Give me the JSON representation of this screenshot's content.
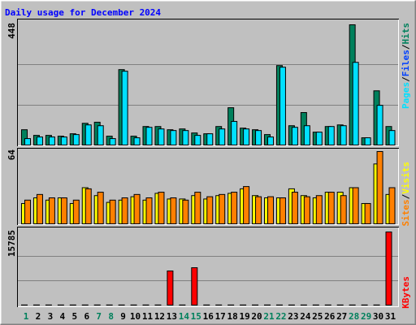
{
  "title": "Daily usage for December 2024",
  "categories": [
    "1",
    "2",
    "3",
    "4",
    "5",
    "6",
    "7",
    "8",
    "9",
    "10",
    "11",
    "12",
    "13",
    "14",
    "15",
    "16",
    "17",
    "18",
    "19",
    "20",
    "21",
    "22",
    "23",
    "24",
    "25",
    "26",
    "27",
    "28",
    "29",
    "30",
    "31"
  ],
  "weekend_days": [
    0,
    6,
    7,
    13,
    14,
    20,
    21,
    27,
    28
  ],
  "label_color": "#000000",
  "weekend_color": "#00805c",
  "chart_data": [
    {
      "type": "bar",
      "ylim": [
        0,
        448
      ],
      "grid": [
        149,
        299
      ],
      "separator": "/",
      "legend": [
        {
          "name": "Pages",
          "color": "#00e0ff"
        },
        {
          "name": "Files",
          "color": "#0040ff"
        },
        {
          "name": "Hits",
          "color": "#00805c"
        }
      ],
      "series": [
        {
          "legend": 2,
          "values": [
            57,
            36,
            36,
            33,
            42,
            81,
            85,
            33,
            281,
            33,
            69,
            69,
            57,
            60,
            45,
            42,
            69,
            139,
            63,
            57,
            39,
            296,
            72,
            121,
            48,
            69,
            75,
            448,
            27,
            202,
            69
          ]
        },
        {
          "legend": 0,
          "values": [
            24,
            30,
            30,
            30,
            39,
            75,
            72,
            24,
            275,
            27,
            66,
            60,
            54,
            54,
            36,
            42,
            60,
            88,
            60,
            54,
            30,
            290,
            66,
            72,
            48,
            69,
            72,
            308,
            27,
            148,
            54
          ]
        }
      ]
    },
    {
      "type": "bar",
      "ylim": [
        0,
        64
      ],
      "grid": [],
      "separator": "/",
      "legend": [
        {
          "name": "Sites",
          "color": "#ff8000"
        },
        {
          "name": "Visits",
          "color": "#ffff00"
        }
      ],
      "series": [
        {
          "legend": 1,
          "values": [
            18,
            23,
            21,
            23,
            18,
            32,
            25,
            19,
            21,
            24,
            21,
            27,
            22,
            22,
            25,
            22,
            25,
            27,
            31,
            25,
            23,
            23,
            31,
            25,
            23,
            28,
            28,
            32,
            18,
            53,
            26
          ]
        },
        {
          "legend": 0,
          "values": [
            21,
            26,
            23,
            23,
            21,
            31,
            28,
            21,
            23,
            26,
            23,
            28,
            23,
            21,
            28,
            24,
            26,
            28,
            33,
            24,
            24,
            23,
            28,
            24,
            25,
            28,
            25,
            32,
            18,
            64,
            32
          ]
        }
      ]
    },
    {
      "type": "bar",
      "ylim": [
        0,
        15785
      ],
      "grid": [
        5262,
        10523
      ],
      "separator": "/",
      "legend": [
        {
          "name": "KBytes",
          "color": "#ff0000"
        }
      ],
      "series": [
        {
          "legend": 0,
          "values": [
            30,
            30,
            30,
            30,
            30,
            30,
            30,
            30,
            30,
            30,
            30,
            30,
            7367,
            30,
            8068,
            30,
            30,
            30,
            30,
            30,
            30,
            30,
            30,
            30,
            30,
            30,
            30,
            30,
            30,
            30,
            15785
          ]
        }
      ]
    }
  ]
}
